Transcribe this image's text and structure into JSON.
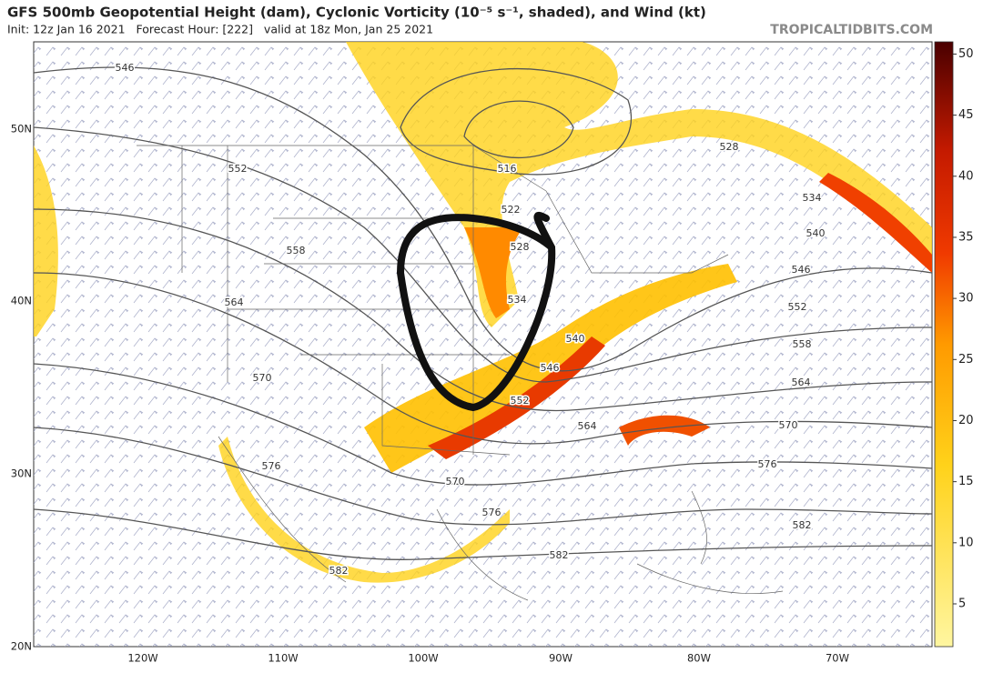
{
  "header": {
    "title": "GFS 500mb Geopotential Height (dam), Cyclonic Vorticity (10⁻⁵ s⁻¹, shaded), and Wind (kt)",
    "subtitle": "Init: 12z Jan 16 2021   Forecast Hour: [222]   valid at 18z Mon, Jan 25 2021",
    "source": "TROPICALTIDBITS.COM"
  },
  "map": {
    "lat_labels": [
      "50N",
      "40N",
      "30N",
      "20N"
    ],
    "lon_labels": [
      "120W",
      "110W",
      "100W",
      "90W",
      "80W",
      "70W"
    ],
    "contour_labels": [
      "546",
      "552",
      "558",
      "564",
      "570",
      "576",
      "516",
      "522",
      "528",
      "534",
      "540",
      "546",
      "552",
      "564",
      "570",
      "576",
      "582",
      "582",
      "528",
      "534",
      "540",
      "546",
      "552",
      "558",
      "564",
      "570",
      "576",
      "582"
    ]
  },
  "colorbar": {
    "range": [
      1.5,
      51
    ],
    "ticks": [
      5,
      10,
      15,
      20,
      25,
      30,
      35,
      40,
      45,
      50
    ]
  }
}
